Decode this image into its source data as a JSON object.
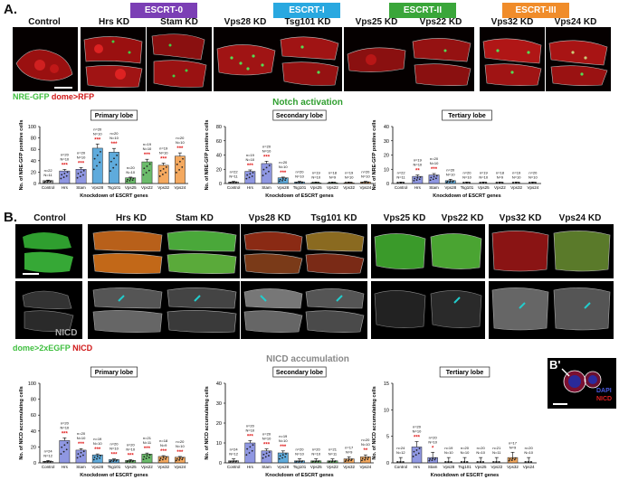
{
  "figure": {
    "panel_a_letter": "A.",
    "panel_b_letter": "B.",
    "panel_b2_letter": "B'",
    "escrt_groups": [
      {
        "label": "ESCRT-0",
        "color": "#7b3fb5"
      },
      {
        "label": "ESCRT-I",
        "color": "#29a8e0"
      },
      {
        "label": "ESCRT-II",
        "color": "#3aa63a"
      },
      {
        "label": "ESCRT-III",
        "color": "#f08c2a"
      }
    ],
    "image_labels": [
      "Control",
      "Hrs KD",
      "Stam KD",
      "Vps28 KD",
      "Tsg101 KD",
      "Vps25 KD",
      "Vps22 KD",
      "Vps32 KD",
      "Vps24 KD"
    ],
    "legend_a": {
      "green": "NRE-GFP",
      "red": "dome>RFP"
    },
    "legend_b": {
      "green": "dome>2xEGFP",
      "red": "NICD"
    },
    "nicd_label": "NICD",
    "b2_legend": {
      "blue": "DAPI",
      "red": "NICD"
    },
    "section_titles": {
      "a": "Notch activation",
      "b": "NICD accumulation"
    },
    "colors": {
      "green_channel": "#3fbf3f",
      "red_channel": "#c01818",
      "bar_control": "#8c8c8c"
    }
  },
  "chart_data": [
    {
      "type": "bar",
      "title": "Primary lobe",
      "ylabel": "No. of NRE-GFP positive cells",
      "xlabel": "Knockdown of ESCRT genes",
      "categories": [
        "Control",
        "Hrs",
        "Stam",
        "Vps28",
        "Tsg101",
        "Vps25",
        "Vps22",
        "Vps32",
        "Vps24"
      ],
      "values": [
        5,
        22,
        25,
        62,
        55,
        10,
        38,
        32,
        48
      ],
      "ylim": [
        0,
        100
      ],
      "yticks": [
        0,
        20,
        40,
        60,
        80,
        100
      ],
      "n_labels": [
        "n=22\nN=11",
        "n=20\nN=10",
        "n=20\nN=10",
        "n=20\nN=10",
        "n=20\nN=10",
        "n=20\nN=10",
        "n=19\nN=10",
        "n=19\nN=10",
        "n=20\nN=10"
      ],
      "significance": [
        "",
        "***",
        "***",
        "***",
        "***",
        "",
        "***",
        "***",
        "***"
      ]
    },
    {
      "type": "bar",
      "title": "Secondary lobe",
      "ylabel": "No. of NRE-GFP positive cells",
      "xlabel": "Knockdown of ESCRT genes",
      "categories": [
        "Control",
        "Hrs",
        "Stam",
        "Vps28",
        "Tsg101",
        "Vps25",
        "Vps22",
        "Vps32",
        "Vps24"
      ],
      "values": [
        2,
        17,
        28,
        8,
        2,
        1,
        1,
        1,
        2
      ],
      "ylim": [
        0,
        80
      ],
      "yticks": [
        0,
        20,
        40,
        60,
        80
      ],
      "n_labels": [
        "n=22\nN=11",
        "n=19\nN=10",
        "n=20\nN=10",
        "n=20\nN=10",
        "n=20\nN=10",
        "n=19\nN=10",
        "n=18\nN=9",
        "n=19\nN=10",
        "n=20\nN=10"
      ],
      "significance": [
        "",
        "***",
        "***",
        "***",
        "",
        "",
        "",
        "",
        ""
      ]
    },
    {
      "type": "bar",
      "title": "Tertiary lobe",
      "ylabel": "No. of NRE-GFP positive cells",
      "xlabel": "Knockdown of ESCRT genes",
      "categories": [
        "Control",
        "Hrs",
        "Stam",
        "Vps28",
        "Tsg101",
        "Vps25",
        "Vps22",
        "Vps32",
        "Vps24"
      ],
      "values": [
        0,
        5,
        6,
        2,
        0,
        0,
        0,
        0,
        0
      ],
      "ylim": [
        0,
        40
      ],
      "yticks": [
        0,
        10,
        20,
        30,
        40
      ],
      "n_labels": [
        "n=22\nN=11",
        "n=19\nN=10",
        "n=20\nN=10",
        "n=20\nN=10",
        "n=20\nN=10",
        "n=19\nN=10",
        "n=18\nN=9",
        "n=19\nN=10",
        "n=20\nN=10"
      ],
      "significance": [
        "",
        "**",
        "***",
        "",
        "",
        "",
        "",
        "",
        ""
      ]
    },
    {
      "type": "bar",
      "title": "Primary lobe",
      "ylabel": "No. of NICD accumulating cells",
      "xlabel": "Knockdown of ESCRT genes",
      "categories": [
        "Control",
        "Hrs",
        "Stam",
        "Vps28",
        "Tsg101",
        "Vps25",
        "Vps22",
        "Vps32",
        "Vps24"
      ],
      "values": [
        2,
        28,
        16,
        10,
        4,
        3,
        11,
        8,
        7
      ],
      "ylim": [
        0,
        100
      ],
      "yticks": [
        0,
        20,
        40,
        60,
        80,
        100
      ],
      "n_labels": [
        "n=24\nN=12",
        "n=20\nN=10",
        "n=20\nN=10",
        "n=19\nN=10",
        "n=20\nN=10",
        "n=20\nN=10",
        "n=21\nN=11",
        "n=18\nN=9",
        "n=20\nN=10"
      ],
      "significance": [
        "",
        "***",
        "***",
        "***",
        "***",
        "***",
        "***",
        "***",
        "***"
      ]
    },
    {
      "type": "bar",
      "title": "Secondary lobe",
      "ylabel": "No. of NICD accumulating cells",
      "xlabel": "Knockdown of ESCRT genes",
      "categories": [
        "Control",
        "Hrs",
        "Stam",
        "Vps28",
        "Tsg101",
        "Vps25",
        "Vps22",
        "Vps32",
        "Vps24"
      ],
      "values": [
        1,
        10,
        6,
        5,
        1,
        1,
        1,
        2,
        3
      ],
      "ylim": [
        0,
        40
      ],
      "yticks": [
        0,
        10,
        20,
        30,
        40
      ],
      "n_labels": [
        "n=24\nN=12",
        "n=20\nN=10",
        "n=20\nN=10",
        "n=19\nN=10",
        "n=20\nN=10",
        "n=20\nN=10",
        "n=21\nN=11",
        "n=17\nN=9",
        "n=20\nN=10"
      ],
      "significance": [
        "",
        "***",
        "***",
        "***",
        "",
        "",
        "",
        "",
        "**"
      ]
    },
    {
      "type": "bar",
      "title": "Tertiary lobe",
      "ylabel": "No. of NICD accumulating cells",
      "xlabel": "Knockdown of ESCRT genes",
      "categories": [
        "Control",
        "Hrs",
        "Stam",
        "Vps28",
        "Tsg101",
        "Vps25",
        "Vps22",
        "Vps32",
        "Vps24"
      ],
      "values": [
        0,
        3,
        1,
        0,
        0,
        0,
        0,
        1,
        0
      ],
      "ylim": [
        0,
        15
      ],
      "yticks": [
        0,
        5,
        10,
        15
      ],
      "n_labels": [
        "n=24\nN=12",
        "n=20\nN=10",
        "n=20\nN=10",
        "n=19\nN=10",
        "n=20\nN=10",
        "n=20\nN=10",
        "n=21\nN=11",
        "n=17\nN=9",
        "n=20\nN=10"
      ],
      "significance": [
        "",
        "***",
        "*",
        "",
        "",
        "",
        "",
        "",
        ""
      ]
    }
  ]
}
